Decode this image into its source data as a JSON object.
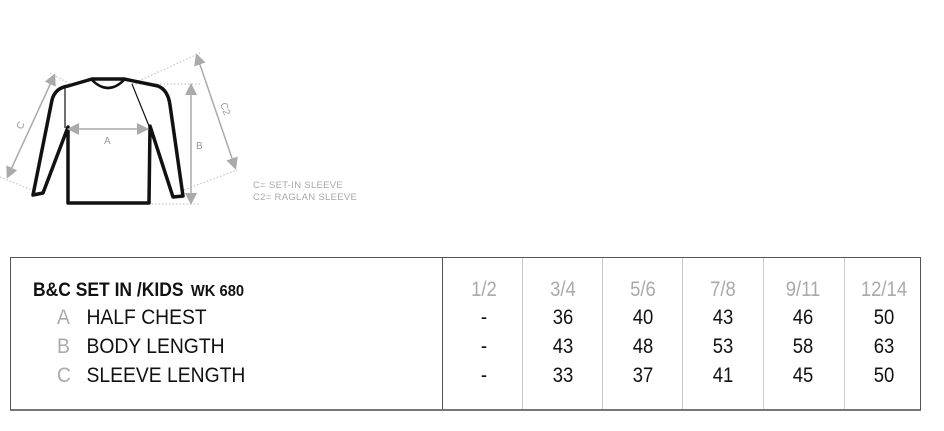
{
  "diagram": {
    "labels": {
      "a": "A",
      "b": "B",
      "c": "C",
      "c2": "C2"
    },
    "notes": [
      "C= SET-IN SLEEVE",
      "C2= RAGLAN SLEEVE"
    ]
  },
  "table": {
    "title": "B&C SET IN /KIDS",
    "code": "WK 680",
    "sizes": [
      "1/2",
      "3/4",
      "5/6",
      "7/8",
      "9/11",
      "12/14"
    ],
    "rows": [
      {
        "letter": "A",
        "label": "HALF CHEST",
        "values": [
          "-",
          "36",
          "40",
          "43",
          "46",
          "50"
        ]
      },
      {
        "letter": "B",
        "label": "BODY LENGTH",
        "values": [
          "-",
          "43",
          "48",
          "53",
          "58",
          "63"
        ]
      },
      {
        "letter": "C",
        "label": "SLEEVE LENGTH",
        "values": [
          "-",
          "33",
          "37",
          "41",
          "45",
          "50"
        ]
      }
    ]
  }
}
